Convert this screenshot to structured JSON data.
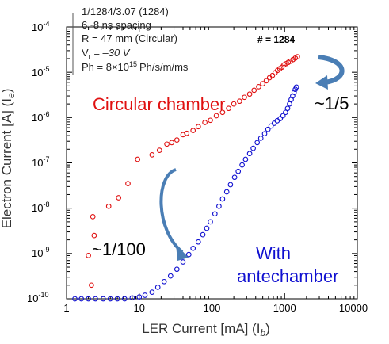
{
  "colors": {
    "circular": "#e01010",
    "antechamber": "#1010d0",
    "arrow": "#4a7eb5"
  },
  "info_box": {
    "lines": [
      "1/1284/3.07   (1284)",
      "6~8 ns spacing",
      "R = 47 mm (Circular)",
      "V",
      "Ph = 8×10",
      "Ph/s/m/ms"
    ],
    "vr_subscript": "r",
    "vr_value": " = –30 V",
    "ph_exponent": "15"
  },
  "chart_data": {
    "type": "scatter",
    "xlabel": "LER Current [mA] (I",
    "xlabel_sub": "b",
    "xlabel_close": ")",
    "ylabel": "Electron Current [A] (I",
    "ylabel_sub": "e",
    "ylabel_close": ")",
    "xscale": "log",
    "yscale": "log",
    "xlim": [
      1,
      10000
    ],
    "ylim": [
      1e-10,
      0.0001
    ],
    "x_tick_labels": [
      "1",
      "10",
      "100",
      "1000",
      "10000"
    ],
    "y_tick_labels": [
      {
        "base": "10",
        "exp": "-4"
      },
      {
        "base": "10",
        "exp": "-5"
      },
      {
        "base": "10",
        "exp": "-6"
      },
      {
        "base": "10",
        "exp": "-7"
      },
      {
        "base": "10",
        "exp": "-8"
      },
      {
        "base": "10",
        "exp": "-9"
      },
      {
        "base": "10",
        "exp": "-10"
      }
    ],
    "fill_label": "# = 1284",
    "series": [
      {
        "name": "Circular chamber",
        "points": [
          [
            2.2,
            2e-10
          ],
          [
            2.0,
            9e-10
          ],
          [
            2.4,
            2.5e-09
          ],
          [
            2.3,
            6.5e-09
          ],
          [
            3.8,
            1.1e-08
          ],
          [
            5.2,
            1.7e-08
          ],
          [
            7.0,
            3.5e-08
          ],
          [
            9.5,
            1.2e-07
          ],
          [
            15,
            1.5e-07
          ],
          [
            19,
            1.9e-07
          ],
          [
            24,
            2.6e-07
          ],
          [
            28,
            2.8e-07
          ],
          [
            33,
            3.2e-07
          ],
          [
            40,
            4.2e-07
          ],
          [
            45,
            4.5e-07
          ],
          [
            55,
            5.2e-07
          ],
          [
            65,
            6.3e-07
          ],
          [
            80,
            7.8e-07
          ],
          [
            95,
            8.7e-07
          ],
          [
            115,
            1.1e-06
          ],
          [
            140,
            1.3e-06
          ],
          [
            170,
            1.6e-06
          ],
          [
            200,
            2e-06
          ],
          [
            240,
            2.3e-06
          ],
          [
            280,
            2.8e-06
          ],
          [
            330,
            3.3e-06
          ],
          [
            380,
            4e-06
          ],
          [
            440,
            4.8e-06
          ],
          [
            500,
            5.6e-06
          ],
          [
            560,
            6.5e-06
          ],
          [
            620,
            7.6e-06
          ],
          [
            680,
            8.5e-06
          ],
          [
            740,
            9.8e-06
          ],
          [
            800,
            1.1e-05
          ],
          [
            860,
            1.2e-05
          ],
          [
            920,
            1.3e-05
          ],
          [
            980,
            1.45e-05
          ],
          [
            1050,
            1.55e-05
          ],
          [
            1120,
            1.65e-05
          ],
          [
            1200,
            1.75e-05
          ],
          [
            1300,
            1.9e-05
          ],
          [
            1400,
            2.05e-05
          ],
          [
            1500,
            2.2e-05
          ]
        ]
      },
      {
        "name": "With antechamber",
        "points": [
          [
            1.3,
            1e-10
          ],
          [
            1.6,
            1e-10
          ],
          [
            2.0,
            1e-10
          ],
          [
            2.5,
            1e-10
          ],
          [
            3.2,
            1e-10
          ],
          [
            4.0,
            1e-10
          ],
          [
            5.0,
            1e-10
          ],
          [
            6.3,
            1e-10
          ],
          [
            8.0,
            1.05e-10
          ],
          [
            10,
            1.1e-10
          ],
          [
            12,
            1.2e-10
          ],
          [
            15,
            1.4e-10
          ],
          [
            18,
            1.8e-10
          ],
          [
            22,
            2.4e-10
          ],
          [
            27,
            3.2e-10
          ],
          [
            33,
            4.5e-10
          ],
          [
            40,
            6.5e-10
          ],
          [
            48,
            9.5e-10
          ],
          [
            55,
            1.3e-09
          ],
          [
            65,
            1.8e-09
          ],
          [
            75,
            2.6e-09
          ],
          [
            85,
            3.6e-09
          ],
          [
            95,
            5e-09
          ],
          [
            110,
            7.5e-09
          ],
          [
            125,
            1.1e-08
          ],
          [
            140,
            1.6e-08
          ],
          [
            160,
            2.3e-08
          ],
          [
            180,
            3.3e-08
          ],
          [
            205,
            4.8e-08
          ],
          [
            230,
            6.5e-08
          ],
          [
            260,
            9e-08
          ],
          [
            290,
            1.2e-07
          ],
          [
            330,
            1.6e-07
          ],
          [
            370,
            2.1e-07
          ],
          [
            420,
            2.8e-07
          ],
          [
            470,
            3.5e-07
          ],
          [
            530,
            4.4e-07
          ],
          [
            590,
            5.5e-07
          ],
          [
            650,
            6.5e-07
          ],
          [
            720,
            7.5e-07
          ],
          [
            790,
            8.5e-07
          ],
          [
            870,
            9.5e-07
          ],
          [
            950,
            1.1e-06
          ],
          [
            1030,
            1.3e-06
          ],
          [
            1100,
            1.6e-06
          ],
          [
            1170,
            2e-06
          ],
          [
            1230,
            2.5e-06
          ],
          [
            1290,
            3e-06
          ],
          [
            1350,
            3.6e-06
          ],
          [
            1400,
            4.2e-06
          ],
          [
            1450,
            4.7e-06
          ]
        ]
      }
    ],
    "annotations": {
      "circular_label": "Circular chamber",
      "ante_label_line1": "With",
      "ante_label_line2": "antechamber",
      "ratio_small": "~1/5",
      "ratio_large": "~1/100"
    },
    "grid": false,
    "legend": "none"
  }
}
